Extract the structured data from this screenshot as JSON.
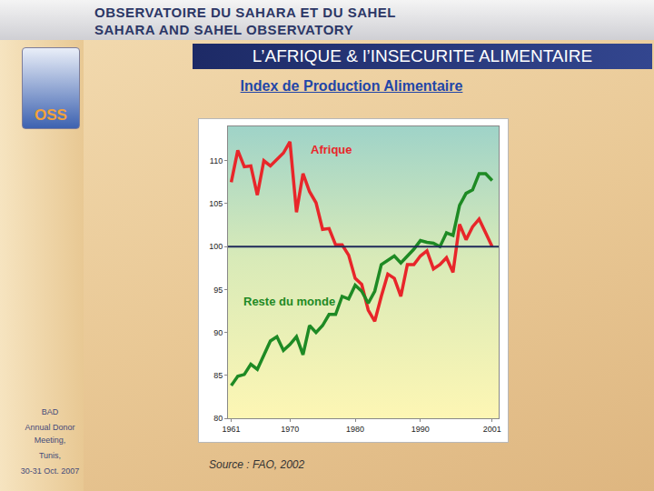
{
  "slide": {
    "header": [
      "OBSERVATOIRE DU SAHARA ET DU SAHEL",
      "SAHARA AND SAHEL OBSERVATORY"
    ],
    "logo": "OSS",
    "title": "L’AFRIQUE & l’INSECURITE ALIMENTAIRE",
    "sidebar": [
      "BAD",
      "Annual Donor Meeting,",
      "Tunis,",
      "30-31 Oct. 2007"
    ],
    "source": "Source : FAO, 2002"
  },
  "chart_data": {
    "type": "line",
    "title": "Index de Production Alimentaire",
    "x": [
      1961,
      1962,
      1963,
      1964,
      1965,
      1966,
      1967,
      1968,
      1969,
      1970,
      1971,
      1972,
      1973,
      1974,
      1975,
      1976,
      1977,
      1978,
      1979,
      1980,
      1981,
      1982,
      1983,
      1984,
      1985,
      1986,
      1987,
      1988,
      1989,
      1990,
      1991,
      1992,
      1993,
      1994,
      1995,
      1996,
      1997,
      1998,
      1999,
      2000,
      2001
    ],
    "series": [
      {
        "name": "Afrique",
        "color": "#e8262a",
        "values": [
          107.5,
          111.2,
          109.3,
          109.4,
          106,
          110,
          109.4,
          110.2,
          110.9,
          112.2,
          104,
          108.5,
          106.4,
          105.1,
          102,
          102.1,
          100.2,
          100.2,
          99,
          96.3,
          95.6,
          92.6,
          91.3,
          94.2,
          96.8,
          96.3,
          94.2,
          97.9,
          97.9,
          98.9,
          99.5,
          97.4,
          97.9,
          98.7,
          97,
          102.6,
          100.8,
          102.3,
          103.2,
          101.6,
          100
        ]
      },
      {
        "name": "Reste du monde",
        "color": "#1e8a24",
        "values": [
          83.8,
          84.9,
          85.1,
          86.3,
          85.7,
          87.4,
          89,
          89.5,
          87.9,
          88.6,
          89.5,
          87.4,
          90.8,
          90,
          90.8,
          92.1,
          92.1,
          94.2,
          93.9,
          95.5,
          94.8,
          93.4,
          94.8,
          97.9,
          98.4,
          98.9,
          98.1,
          98.9,
          99.7,
          100.7,
          100.5,
          100.4,
          100,
          101.6,
          101.3,
          104.8,
          106.2,
          106.6,
          108.5,
          108.5,
          107.7
        ]
      }
    ],
    "reference_line": {
      "value": 100,
      "color": "#1f2a5a"
    },
    "xlim": [
      1960.5,
      2002
    ],
    "xticks": [
      1961,
      1970,
      1980,
      1990,
      2001
    ],
    "ylim": [
      80,
      114
    ],
    "yticks": [
      80,
      85,
      90,
      95,
      100,
      105,
      110
    ],
    "grid": false
  }
}
